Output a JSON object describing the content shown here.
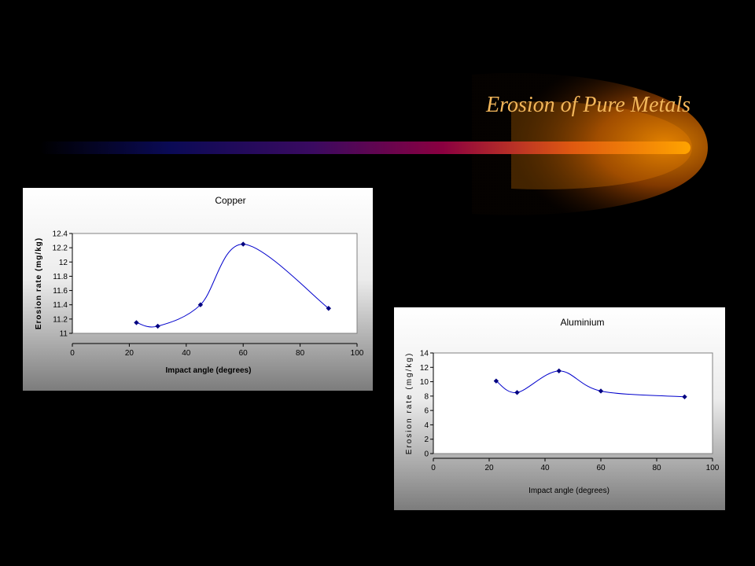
{
  "slide": {
    "title": "Erosion of Pure Metals",
    "title_color": "#f2b65a",
    "background": "#000000",
    "accent_colors": [
      "#0a0a50",
      "#8a0040",
      "#ff9a00"
    ]
  },
  "chart_data": [
    {
      "type": "line",
      "title": "Copper",
      "xlabel": "Impact angle (degrees)",
      "ylabel": "Erosion rate (mg/kg)",
      "xlim": [
        0,
        100
      ],
      "ylim": [
        11,
        12.4
      ],
      "x_ticks": [
        "0",
        "20",
        "40",
        "60",
        "80",
        "100"
      ],
      "y_ticks": [
        "11",
        "11.2",
        "11.4",
        "11.6",
        "11.8",
        "12",
        "12.2",
        "12.4"
      ],
      "smooth": true,
      "grid": false,
      "legend": "none",
      "line_color": "#0000cc",
      "marker_color": "#000080",
      "series": [
        {
          "x": [
            22.5,
            30,
            45,
            60,
            90
          ],
          "y": [
            11.15,
            11.1,
            11.4,
            12.25,
            11.35
          ]
        }
      ]
    },
    {
      "type": "line",
      "title": "Aluminium",
      "xlabel": "Impact angle (degrees)",
      "ylabel": "Erosion rate (mg/kg)",
      "xlim": [
        0,
        100
      ],
      "ylim": [
        0,
        14
      ],
      "x_ticks": [
        "0",
        "20",
        "40",
        "60",
        "80",
        "100"
      ],
      "y_ticks": [
        "0",
        "2",
        "4",
        "6",
        "8",
        "10",
        "12",
        "14"
      ],
      "smooth": true,
      "grid": false,
      "legend": "none",
      "line_color": "#0000cc",
      "marker_color": "#000080",
      "series": [
        {
          "x": [
            22.5,
            30,
            45,
            60,
            90
          ],
          "y": [
            10.1,
            8.5,
            11.5,
            8.7,
            7.9
          ]
        }
      ]
    }
  ]
}
